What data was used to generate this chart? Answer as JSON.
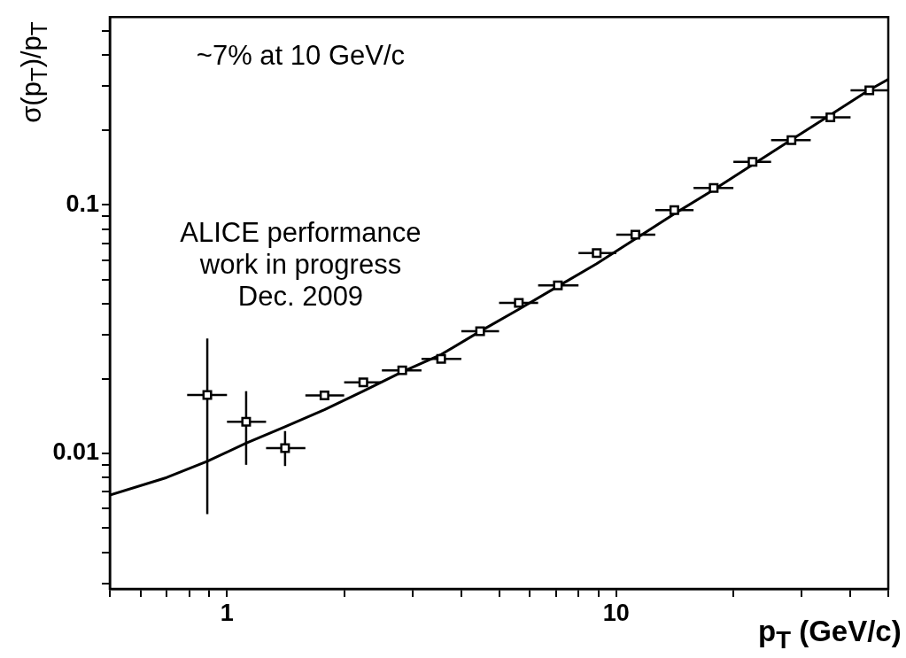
{
  "chart_data": {
    "type": "scatter",
    "xlabel": "p$_{T}$ (GeV/c)",
    "ylabel": "σ(p$_{T}$)/p$_{T}$",
    "log": "xy",
    "grid": false,
    "xlim": [
      0.5,
      50
    ],
    "ylim": [
      0.00285,
      0.57
    ],
    "xticks": [
      {
        "value": 0.5,
        "label": null
      },
      {
        "value": 0.6,
        "label": null
      },
      {
        "value": 0.7,
        "label": null
      },
      {
        "value": 0.8,
        "label": null
      },
      {
        "value": 0.9,
        "label": null
      },
      1,
      {
        "value": 2,
        "label": null
      },
      {
        "value": 3,
        "label": null
      },
      {
        "value": 4,
        "label": null
      },
      {
        "value": 5,
        "label": null
      },
      {
        "value": 6,
        "label": null
      },
      {
        "value": 7,
        "label": null
      },
      {
        "value": 8,
        "label": null
      },
      {
        "value": 9,
        "label": null
      },
      10,
      {
        "value": 20,
        "label": null
      },
      {
        "value": 30,
        "label": null
      },
      {
        "value": 40,
        "label": null
      },
      {
        "value": 50,
        "label": null
      }
    ],
    "yticks": [
      {
        "value": 0.003,
        "label": null
      },
      {
        "value": 0.004,
        "label": null
      },
      {
        "value": 0.005,
        "label": null
      },
      {
        "value": 0.006,
        "label": null
      },
      {
        "value": 0.007,
        "label": null
      },
      {
        "value": 0.008,
        "label": null
      },
      {
        "value": 0.009,
        "label": null
      },
      0.01,
      {
        "value": 0.02,
        "label": null
      },
      {
        "value": 0.03,
        "label": null
      },
      {
        "value": 0.04,
        "label": null
      },
      {
        "value": 0.05,
        "label": null
      },
      {
        "value": 0.06,
        "label": null
      },
      {
        "value": 0.07,
        "label": null
      },
      {
        "value": 0.08,
        "label": null
      },
      {
        "value": 0.09,
        "label": null
      },
      0.1,
      {
        "value": 0.2,
        "label": null
      },
      {
        "value": 0.3,
        "label": null
      },
      {
        "value": 0.4,
        "label": null
      },
      {
        "value": 0.5,
        "label": null
      }
    ],
    "annotations": [
      "~7% at 10 GeV/c",
      "ALICE performance\nwork in progress\nDec. 2009"
    ],
    "series": [
      {
        "type": "scatter",
        "marker": "square",
        "color": "#000000",
        "x": [
          0.89,
          1.12,
          1.41,
          1.78,
          2.24,
          2.82,
          3.55,
          4.47,
          5.62,
          7.08,
          8.91,
          11.2,
          14.1,
          17.8,
          22.4,
          28.2,
          35.5,
          44.7
        ],
        "values": [
          0.0172,
          0.0134,
          0.0105,
          0.0171,
          0.0193,
          0.0216,
          0.024,
          0.031,
          0.0403,
          0.0474,
          0.064,
          0.0759,
          0.0953,
          0.117,
          0.149,
          0.182,
          0.225,
          0.289
        ],
        "errors": [
          [
            0.0057,
            0.029
          ],
          [
            0.009,
            0.0178
          ],
          [
            0.0089,
            0.0123
          ],
          null,
          null,
          null,
          null,
          null,
          null,
          null,
          null,
          null,
          null,
          null,
          null,
          null,
          null,
          null
        ],
        "xerrors": [
          [
            0.79,
            1.0
          ],
          [
            1.0,
            1.26
          ],
          [
            1.26,
            1.59
          ],
          [
            1.59,
            2.0
          ],
          [
            2.0,
            2.5
          ],
          [
            2.5,
            3.16
          ],
          [
            3.16,
            4.0
          ],
          [
            4.0,
            5.0
          ],
          [
            5.0,
            6.3
          ],
          [
            6.3,
            8.0
          ],
          [
            8.0,
            10.0
          ],
          [
            10.0,
            12.6
          ],
          [
            12.6,
            15.8
          ],
          [
            15.8,
            20.0
          ],
          [
            20.0,
            25.0
          ],
          [
            25.0,
            31.6
          ],
          [
            31.6,
            40.0
          ],
          [
            40.0,
            50.0
          ]
        ]
      },
      {
        "type": "line",
        "marker": "none",
        "color": "#000000",
        "x": [
          0.5,
          0.7,
          0.89,
          1.12,
          1.41,
          1.78,
          2.24,
          2.82,
          3.55,
          4.47,
          5.62,
          7.08,
          8.91,
          11.2,
          14.1,
          17.8,
          22.4,
          28.2,
          35.5,
          44.7,
          50
        ],
        "values": [
          0.0068,
          0.008,
          0.0093,
          0.011,
          0.0128,
          0.015,
          0.0178,
          0.0213,
          0.025,
          0.031,
          0.038,
          0.047,
          0.058,
          0.073,
          0.092,
          0.115,
          0.145,
          0.183,
          0.23,
          0.29,
          0.32
        ]
      }
    ]
  }
}
